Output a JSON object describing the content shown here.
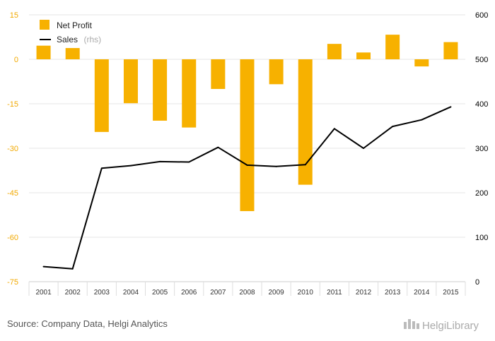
{
  "chart_data": {
    "type": "bar",
    "categories": [
      "2001",
      "2002",
      "2003",
      "2004",
      "2005",
      "2006",
      "2007",
      "2008",
      "2009",
      "2010",
      "2011",
      "2012",
      "2013",
      "2014",
      "2015"
    ],
    "series": [
      {
        "name": "Net Profit",
        "type": "bar",
        "axis": "left",
        "color": "#f7b100",
        "values": [
          4.6,
          3.8,
          -24.5,
          -14.8,
          -20.7,
          -23.0,
          -10.0,
          -51.2,
          -8.4,
          -42.3,
          5.2,
          2.3,
          8.3,
          -2.4,
          5.8
        ]
      },
      {
        "name": "Sales",
        "legend_suffix": "(rhs)",
        "type": "line",
        "axis": "right",
        "color": "#000000",
        "values": [
          34,
          29,
          255,
          261,
          270,
          269,
          302,
          262,
          259,
          263,
          344,
          300,
          349,
          364,
          393
        ]
      }
    ],
    "y_left": {
      "ylim": [
        -75,
        15
      ],
      "ticks": [
        "15",
        "0",
        "-15",
        "-30",
        "-45",
        "-60",
        "-75"
      ],
      "tick_color": "#f2a900"
    },
    "y_right": {
      "ylim": [
        0,
        600
      ],
      "ticks": [
        "600",
        "500",
        "400",
        "300",
        "200",
        "100",
        "0"
      ]
    },
    "grid": true,
    "legend_position": "top-left",
    "title": "",
    "xlabel": "",
    "ylabel": ""
  },
  "footer": {
    "source": "Source: Company Data, Helgi Analytics",
    "brand": "HelgiLibrary"
  }
}
